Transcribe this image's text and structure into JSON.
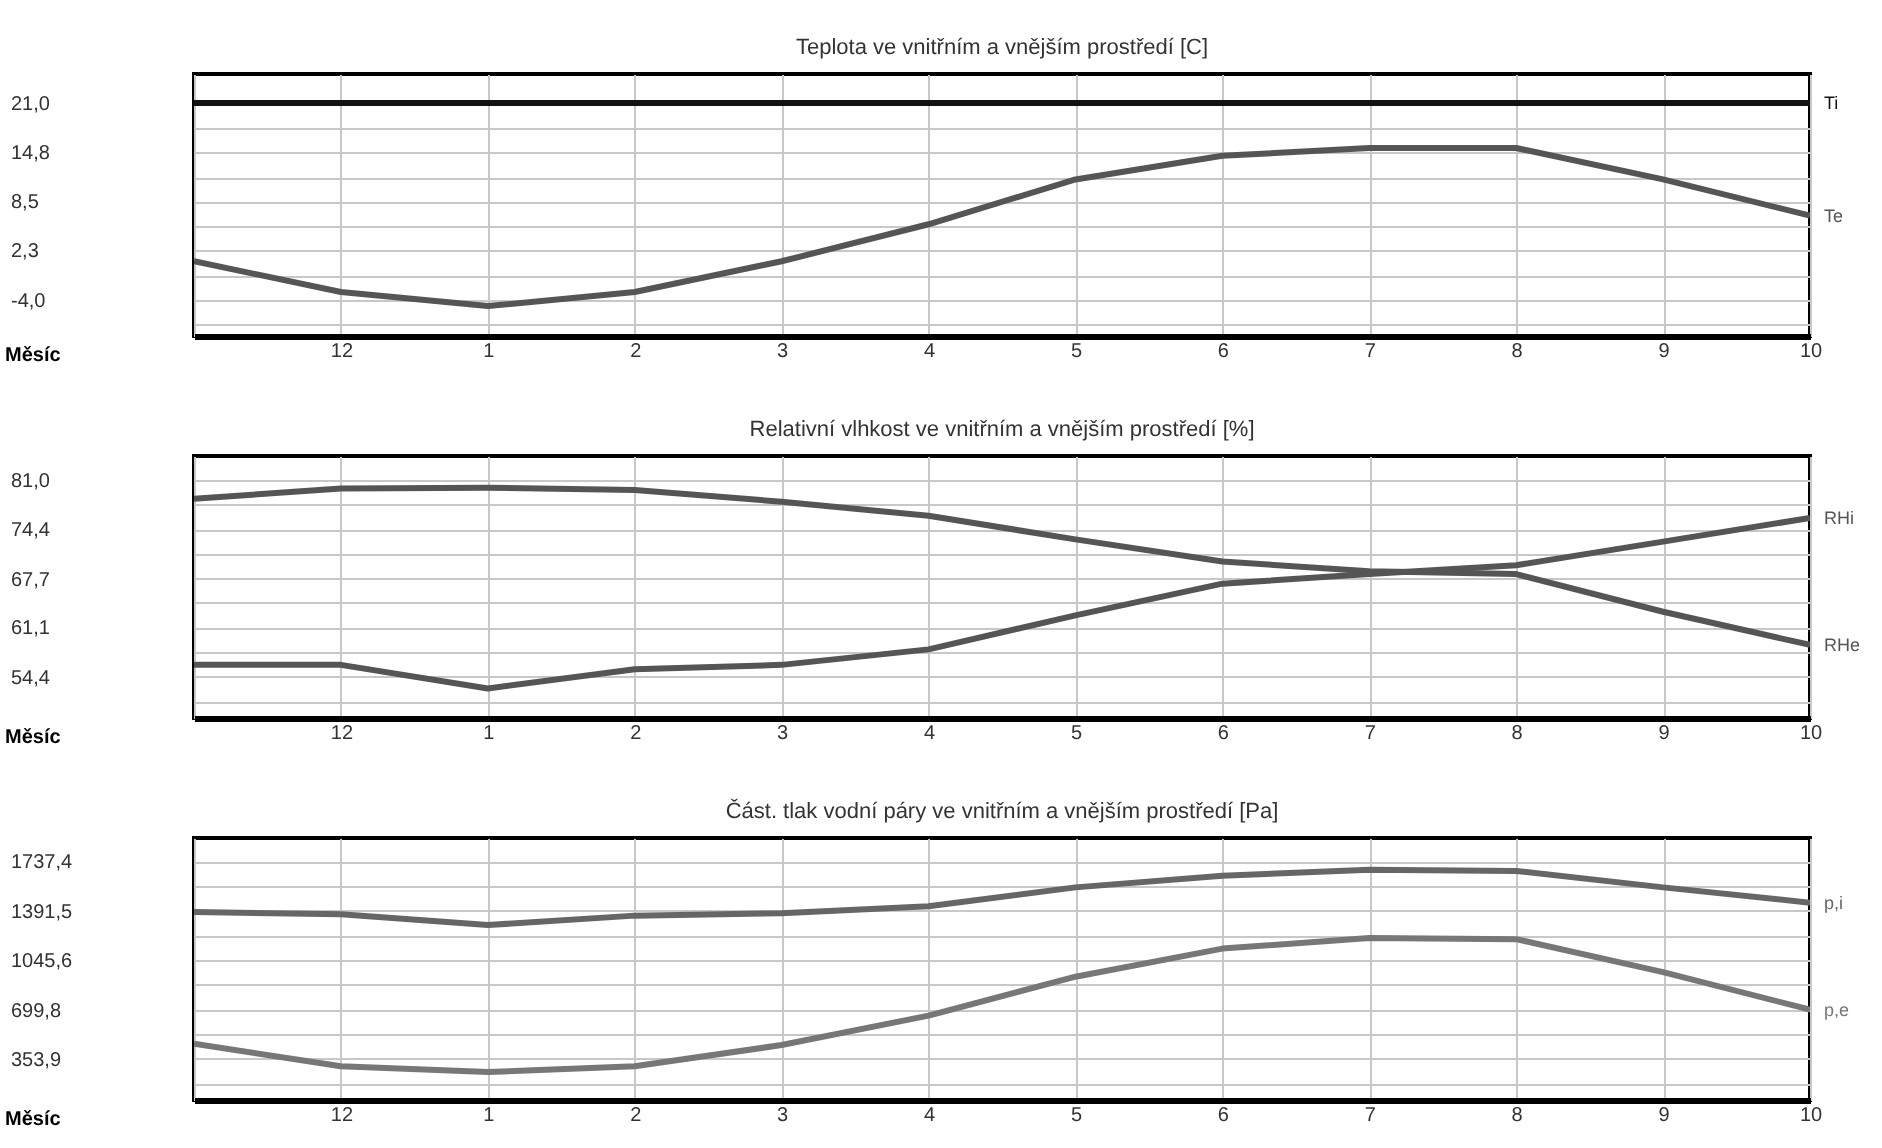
{
  "chart_data": [
    {
      "type": "line",
      "title": "Teplota ve vnitřním a vnějším prostředí [C]",
      "xlabel": "Měsíc",
      "categories": [
        null,
        "12",
        "1",
        "2",
        "3",
        "4",
        "5",
        "6",
        "7",
        "8",
        "9",
        "10"
      ],
      "ylim": [
        -8.6,
        24.7
      ],
      "yticks": [
        {
          "value": 21,
          "label": "21,0"
        },
        {
          "value": 17.9,
          "label": null
        },
        {
          "value": 14.8,
          "label": "14,8"
        },
        {
          "value": 11.6,
          "label": null
        },
        {
          "value": 8.5,
          "label": "8,5"
        },
        {
          "value": 5.4,
          "label": null
        },
        {
          "value": 2.3,
          "label": "2,3"
        },
        {
          "value": -0.9,
          "label": null
        },
        {
          "value": -4,
          "label": "-4,0"
        },
        {
          "value": -7.1,
          "label": null
        }
      ],
      "grid": true,
      "series": [
        {
          "name": "Ti",
          "color": "#111111",
          "values": [
            21,
            21,
            21,
            21,
            21,
            21,
            21,
            21,
            21,
            21,
            21,
            21
          ]
        },
        {
          "name": "Te",
          "color": "#555555",
          "values": [
            0.9,
            -3.0,
            -4.8,
            -3.0,
            0.9,
            5.6,
            11.3,
            14.3,
            15.3,
            15.3,
            11.3,
            6.7
          ]
        }
      ]
    },
    {
      "type": "line",
      "title": "Relativní vlhkost ve vnitřním a vnějším prostředí [%]",
      "xlabel": "Měsíc",
      "categories": [
        null,
        "12",
        "1",
        "2",
        "3",
        "4",
        "5",
        "6",
        "7",
        "8",
        "9",
        "10"
      ],
      "ylim": [
        48.8,
        84.3
      ],
      "yticks": [
        {
          "value": 81,
          "label": "81,0"
        },
        {
          "value": 77.7,
          "label": null
        },
        {
          "value": 74.4,
          "label": "74,4"
        },
        {
          "value": 71,
          "label": null
        },
        {
          "value": 67.7,
          "label": "67,7"
        },
        {
          "value": 64.4,
          "label": null
        },
        {
          "value": 61.1,
          "label": "61,1"
        },
        {
          "value": 57.7,
          "label": null
        },
        {
          "value": 54.4,
          "label": "54,4"
        },
        {
          "value": 51.1,
          "label": null
        }
      ],
      "grid": true,
      "series": [
        {
          "name": "RHi",
          "color": "#555555",
          "values": [
            56.0,
            56.0,
            52.8,
            55.4,
            56.0,
            58.1,
            62.7,
            67.0,
            68.3,
            69.5,
            72.7,
            75.9
          ]
        },
        {
          "name": "RHe",
          "color": "#555555",
          "values": [
            78.5,
            79.9,
            80.0,
            79.7,
            78.1,
            76.2,
            73.0,
            70.0,
            68.7,
            68.3,
            63.2,
            58.7
          ]
        }
      ]
    },
    {
      "type": "line",
      "title": "Část. tlak vodní páry ve vnitřním a vnějším prostředí [Pa]",
      "xlabel": "Měsíc",
      "categories": [
        null,
        "12",
        "1",
        "2",
        "3",
        "4",
        "5",
        "6",
        "7",
        "8",
        "9",
        "10"
      ],
      "ylim": [
        66,
        1902
      ],
      "yticks": [
        {
          "value": 1737.4,
          "label": "1737,4"
        },
        {
          "value": 1564.5,
          "label": null
        },
        {
          "value": 1391.5,
          "label": "1391,5"
        },
        {
          "value": 1218.6,
          "label": null
        },
        {
          "value": 1045.6,
          "label": "1045,6"
        },
        {
          "value": 872.7,
          "label": null
        },
        {
          "value": 699.8,
          "label": "699,8"
        },
        {
          "value": 526.9,
          "label": null
        },
        {
          "value": 353.9,
          "label": "353,9"
        },
        {
          "value": 181,
          "label": null
        }
      ],
      "grid": true,
      "series": [
        {
          "name": "p,i",
          "color": "#666666",
          "values": [
            1383,
            1367,
            1292,
            1358,
            1375,
            1424,
            1556,
            1638,
            1680,
            1671,
            1556,
            1449
          ]
        },
        {
          "name": "p,e",
          "color": "#777777",
          "values": [
            460,
            303,
            262,
            303,
            451,
            657,
            930,
            1127,
            1201,
            1193,
            962,
            699
          ]
        }
      ]
    }
  ]
}
